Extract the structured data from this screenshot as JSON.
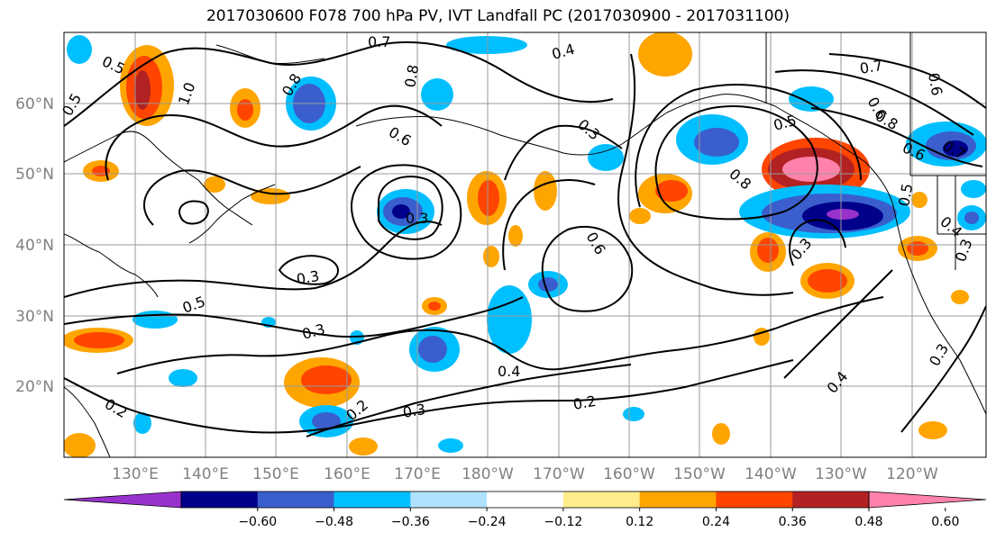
{
  "title": "2017030600 F078 700 hPa PV, IVT Landfall PC (2017030900 - 2017031100)",
  "lat_labels": [
    "60°N",
    "50°N",
    "40°N",
    "30°N",
    "20°N"
  ],
  "lon_labels": [
    "130°E",
    "140°E",
    "150°E",
    "160°E",
    "170°E",
    "180°W",
    "170°W",
    "160°W",
    "150°W",
    "140°W",
    "130°W",
    "120°W"
  ],
  "colorbar": {
    "colors": [
      "#9932cc",
      "#00008b",
      "#3a5fcd",
      "#00bfff",
      "#b0e2ff",
      "#ffffff",
      "#ffec8b",
      "#ffa500",
      "#ff4500",
      "#b22222",
      "#ff82ab"
    ],
    "labels": [
      "−0.60",
      "−0.48",
      "−0.36",
      "−0.24",
      "−0.12",
      "0.12",
      "0.24",
      "0.36",
      "0.48",
      "0.60"
    ]
  },
  "contour_labels": [
    {
      "text": "0.5"
    },
    {
      "text": "0.7"
    },
    {
      "text": "0.4"
    },
    {
      "text": "0.8"
    },
    {
      "text": "1.0"
    },
    {
      "text": "0.5"
    },
    {
      "text": "0.6"
    },
    {
      "text": "0.8"
    },
    {
      "text": "0.3"
    },
    {
      "text": "0.3"
    },
    {
      "text": "0.8"
    },
    {
      "text": "0.5"
    },
    {
      "text": "0.7"
    },
    {
      "text": "0.6"
    },
    {
      "text": "0.8"
    },
    {
      "text": "0.6"
    },
    {
      "text": "0.7"
    },
    {
      "text": "0.6"
    },
    {
      "text": "0.6"
    },
    {
      "text": "0.3"
    },
    {
      "text": "0.3"
    },
    {
      "text": "0.5"
    },
    {
      "text": "0.3"
    },
    {
      "text": "0.4"
    },
    {
      "text": "0.2"
    },
    {
      "text": "0.3"
    },
    {
      "text": "0.2"
    },
    {
      "text": "0.2"
    },
    {
      "text": "0.4"
    },
    {
      "text": "0.3"
    },
    {
      "text": "0.5"
    },
    {
      "text": "0.4"
    },
    {
      "text": "0.3"
    }
  ]
}
